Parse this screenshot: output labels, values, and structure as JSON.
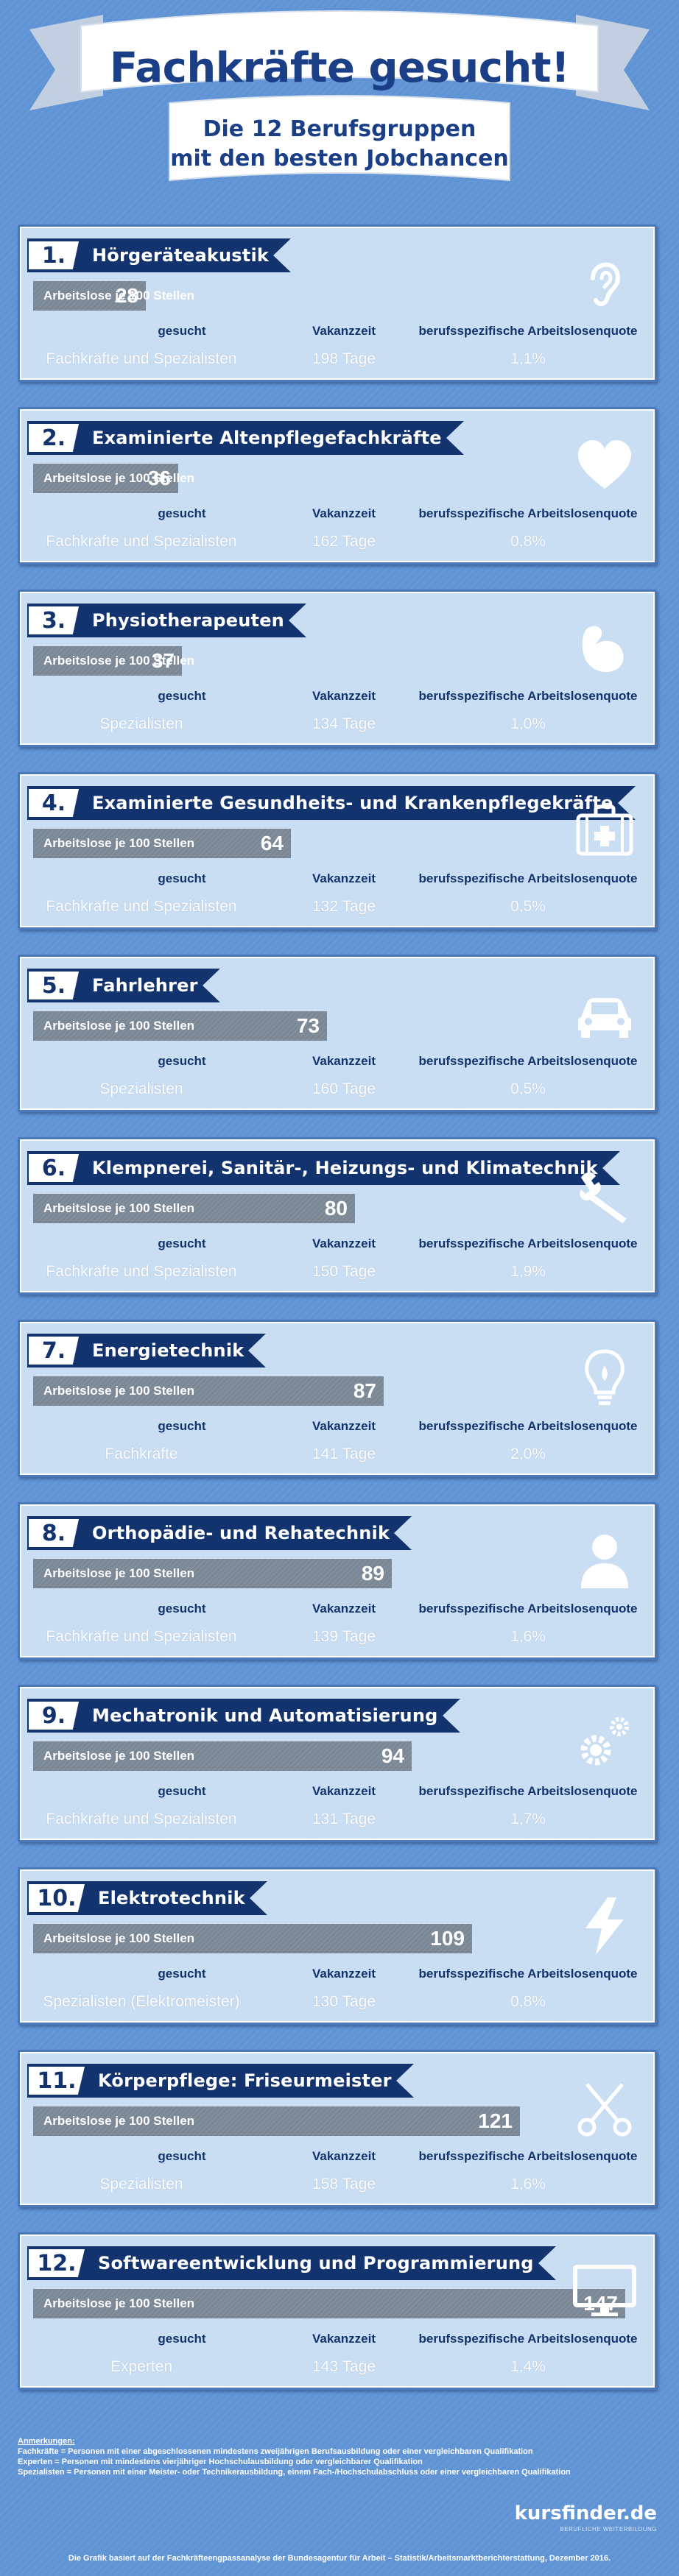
{
  "header": {
    "title": "Fachkräfte gesucht!",
    "subtitle_line1": "Die 12 Berufsgruppen",
    "subtitle_line2": "mit den besten Jobchancen"
  },
  "colors": {
    "background": "#5f93d4",
    "card": "#c9ddf3",
    "navy": "#13336f",
    "bar": "#7a8795"
  },
  "labels": {
    "bar_label": "Arbeitslose je 100 Stellen",
    "col_gesucht": "gesucht",
    "col_vakanz": "Vakanzzeit",
    "col_quote": "berufsspezifische Arbeitslosenquote"
  },
  "cards": [
    {
      "rank": "1.",
      "title": "Hörgeräteakustik",
      "value": "28",
      "value_num": 28,
      "gesucht": "Fachkräfte und Spezialisten",
      "vakanz": "198 Tage",
      "quote": "1,1%",
      "icon": "ear-icon"
    },
    {
      "rank": "2.",
      "title": "Examinierte Altenpflegefachkräfte",
      "value": "36",
      "value_num": 36,
      "gesucht": "Fachkräfte und Spezialisten",
      "vakanz": "162 Tage",
      "quote": "0,8%",
      "icon": "heart-icon"
    },
    {
      "rank": "3.",
      "title": "Physiotherapeuten",
      "value": "37",
      "value_num": 37,
      "gesucht": "Spezialisten",
      "vakanz": "134 Tage",
      "quote": "1,0%",
      "icon": "arm-muscle-icon"
    },
    {
      "rank": "4.",
      "title": "Examinierte Gesundheits- und Krankenpflegekräfte",
      "value": "64",
      "value_num": 64,
      "gesucht": "Fachkräfte und Spezialisten",
      "vakanz": "132 Tage",
      "quote": "0,5%",
      "icon": "first-aid-kit-icon"
    },
    {
      "rank": "5.",
      "title": "Fahrlehrer",
      "value": "73",
      "value_num": 73,
      "gesucht": "Spezialisten",
      "vakanz": "160 Tage",
      "quote": "0,5%",
      "icon": "car-icon"
    },
    {
      "rank": "6.",
      "title": "Klempnerei, Sanitär-, Heizungs- und Klimatechnik",
      "value": "80",
      "value_num": 80,
      "gesucht": "Fachkräfte und Spezialisten",
      "vakanz": "150 Tage",
      "quote": "1,9%",
      "icon": "wrench-icon"
    },
    {
      "rank": "7.",
      "title": "Energietechnik",
      "value": "87",
      "value_num": 87,
      "gesucht": "Fachkräfte",
      "vakanz": "141 Tage",
      "quote": "2,0%",
      "icon": "lightbulb-icon"
    },
    {
      "rank": "8.",
      "title": "Orthopädie- und Rehatechnik",
      "value": "89",
      "value_num": 89,
      "gesucht": "Fachkräfte und Spezialisten",
      "vakanz": "139 Tage",
      "quote": "1,6%",
      "icon": "person-icon"
    },
    {
      "rank": "9.",
      "title": "Mechatronik und Automatisierung",
      "value": "94",
      "value_num": 94,
      "gesucht": "Fachkräfte und Spezialisten",
      "vakanz": "131 Tage",
      "quote": "1,7%",
      "icon": "gears-icon"
    },
    {
      "rank": "10.",
      "title": "Elektrotechnik",
      "value": "109",
      "value_num": 109,
      "gesucht": "Spezialisten (Elektromeister)",
      "vakanz": "130 Tage",
      "quote": "0,8%",
      "icon": "lightning-icon"
    },
    {
      "rank": "11.",
      "title": "Körperpflege: Friseurmeister",
      "value": "121",
      "value_num": 121,
      "gesucht": "Spezialisten",
      "vakanz": "158 Tage",
      "quote": "1,6%",
      "icon": "scissors-icon"
    },
    {
      "rank": "12.",
      "title": "Softwareentwicklung und Programmierung",
      "value": "147",
      "value_num": 147,
      "gesucht": "Experten",
      "vakanz": "143 Tage",
      "quote": "1,4%",
      "icon": "monitor-icon"
    }
  ],
  "footer": {
    "notes_head": "Anmerkungen:",
    "note1": "Fachkräfte = Personen mit einer abgeschlossenen mindestens zweijährigen Berufsausbildung oder einer vergleichbaren Qualifikation",
    "note2": "Experten = Personen mit mindestens vierjähriger Hochschulausbildung oder vergleichbarer Qualifikation",
    "note3": "Spezialisten = Personen mit einer Meister- oder Technikerausbildung, einem Fach-/Hochschulabschluss oder einer vergleichbaren Qualifikation",
    "logo": "kursfinder.de",
    "logo_tag": "BERUFLICHE WEITERBILDUNG",
    "source": "Die Grafik basiert auf der Fachkräfteengpassanalyse der Bundesagentur für Arbeit – Statistik/Arbeitsmarktberichterstattung, Dezember 2016."
  }
}
